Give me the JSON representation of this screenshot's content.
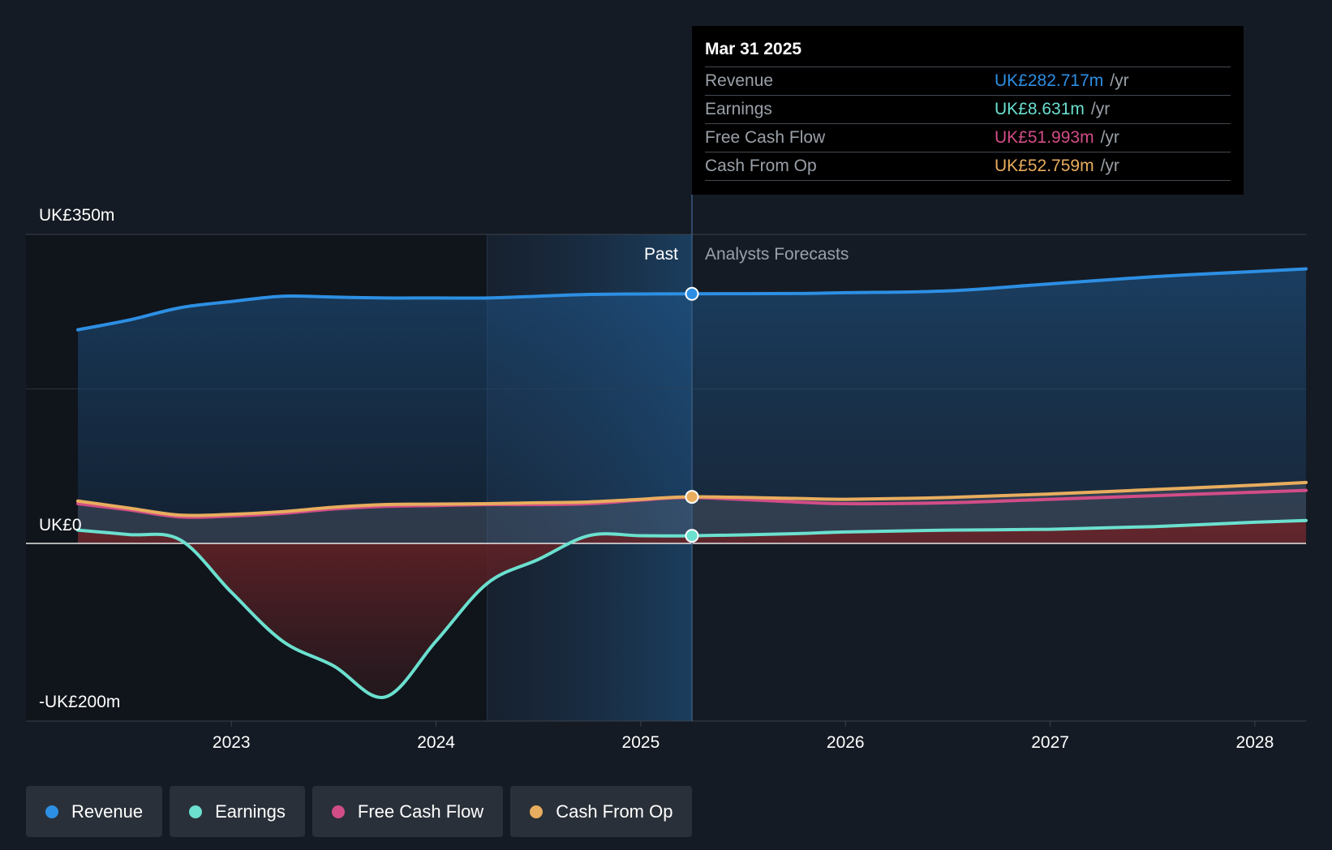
{
  "colors": {
    "background": "#151b24",
    "revenue": "#2d8fe3",
    "earnings": "#6be0cf",
    "free_cash_flow": "#d24d87",
    "cash_from_op": "#e8ad5e"
  },
  "tooltip": {
    "date": "Mar 31 2025",
    "rows": [
      {
        "label": "Revenue",
        "value": "UK£282.717m",
        "unit": "/yr",
        "color": "#2d8fe3"
      },
      {
        "label": "Earnings",
        "value": "UK£8.631m",
        "unit": "/yr",
        "color": "#6be0cf"
      },
      {
        "label": "Free Cash Flow",
        "value": "UK£51.993m",
        "unit": "/yr",
        "color": "#d24d87"
      },
      {
        "label": "Cash From Op",
        "value": "UK£52.759m",
        "unit": "/yr",
        "color": "#e8ad5e"
      }
    ]
  },
  "legend": [
    {
      "label": "Revenue",
      "color": "#2d8fe3"
    },
    {
      "label": "Earnings",
      "color": "#6be0cf"
    },
    {
      "label": "Free Cash Flow",
      "color": "#d24d87"
    },
    {
      "label": "Cash From Op",
      "color": "#e8ad5e"
    }
  ],
  "chart_data": {
    "type": "line",
    "y_unit_labels": {
      "top": "UK£350m",
      "zero": "UK£0",
      "bottom": "-UK£200m"
    },
    "ylim": [
      -200,
      350
    ],
    "xlim": [
      2022.25,
      2028.25
    ],
    "x_ticks": [
      2023,
      2024,
      2025,
      2026,
      2027,
      2028
    ],
    "past_label": "Past",
    "forecast_label": "Analysts Forecasts",
    "divider_x": 2025.25,
    "shaded_past_start": 2024.25,
    "grid": true,
    "legend_position": "bottom-left",
    "series": [
      {
        "name": "Revenue",
        "key": "revenue",
        "points": [
          [
            2022.25,
            242
          ],
          [
            2022.5,
            253
          ],
          [
            2022.75,
            267
          ],
          [
            2023.0,
            274
          ],
          [
            2023.25,
            280
          ],
          [
            2023.5,
            279
          ],
          [
            2023.75,
            278
          ],
          [
            2024.0,
            278
          ],
          [
            2024.25,
            278
          ],
          [
            2024.5,
            280
          ],
          [
            2024.75,
            282
          ],
          [
            2025.0,
            282.5
          ],
          [
            2025.25,
            282.717
          ],
          [
            2025.75,
            283
          ],
          [
            2026.0,
            284
          ],
          [
            2026.5,
            286
          ],
          [
            2027.0,
            294
          ],
          [
            2027.5,
            302
          ],
          [
            2028.0,
            308
          ],
          [
            2028.25,
            311
          ]
        ]
      },
      {
        "name": "Earnings",
        "key": "earnings",
        "points": [
          [
            2022.25,
            15
          ],
          [
            2022.5,
            10
          ],
          [
            2022.75,
            4
          ],
          [
            2023.0,
            -55
          ],
          [
            2023.25,
            -110
          ],
          [
            2023.5,
            -138
          ],
          [
            2023.75,
            -173
          ],
          [
            2024.0,
            -110
          ],
          [
            2024.25,
            -45
          ],
          [
            2024.5,
            -18
          ],
          [
            2024.75,
            9
          ],
          [
            2025.0,
            8.7
          ],
          [
            2025.25,
            8.631
          ],
          [
            2025.75,
            11
          ],
          [
            2026.0,
            13
          ],
          [
            2026.5,
            15
          ],
          [
            2027.0,
            16
          ],
          [
            2027.5,
            19
          ],
          [
            2028.0,
            24
          ],
          [
            2028.25,
            26
          ]
        ]
      },
      {
        "name": "Free Cash Flow",
        "key": "free_cash_flow",
        "points": [
          [
            2022.25,
            45
          ],
          [
            2022.5,
            38
          ],
          [
            2022.75,
            30
          ],
          [
            2023.0,
            31
          ],
          [
            2023.25,
            34
          ],
          [
            2023.5,
            39
          ],
          [
            2023.75,
            42
          ],
          [
            2024.0,
            43
          ],
          [
            2024.25,
            44
          ],
          [
            2024.5,
            44
          ],
          [
            2024.75,
            45
          ],
          [
            2025.0,
            49
          ],
          [
            2025.25,
            51.993
          ],
          [
            2025.75,
            47
          ],
          [
            2026.0,
            45
          ],
          [
            2026.5,
            46
          ],
          [
            2027.0,
            50
          ],
          [
            2027.5,
            54
          ],
          [
            2028.0,
            58
          ],
          [
            2028.25,
            60
          ]
        ]
      },
      {
        "name": "Cash From Op",
        "key": "cash_from_op",
        "points": [
          [
            2022.25,
            48
          ],
          [
            2022.5,
            40
          ],
          [
            2022.75,
            32
          ],
          [
            2023.0,
            33
          ],
          [
            2023.25,
            36
          ],
          [
            2023.5,
            41
          ],
          [
            2023.75,
            44
          ],
          [
            2024.0,
            44.5
          ],
          [
            2024.25,
            45
          ],
          [
            2024.5,
            46
          ],
          [
            2024.75,
            47
          ],
          [
            2025.0,
            50
          ],
          [
            2025.25,
            52.759
          ],
          [
            2025.75,
            51
          ],
          [
            2026.0,
            50
          ],
          [
            2026.5,
            52
          ],
          [
            2027.0,
            56
          ],
          [
            2027.5,
            61
          ],
          [
            2028.0,
            66
          ],
          [
            2028.25,
            69
          ]
        ]
      }
    ]
  }
}
